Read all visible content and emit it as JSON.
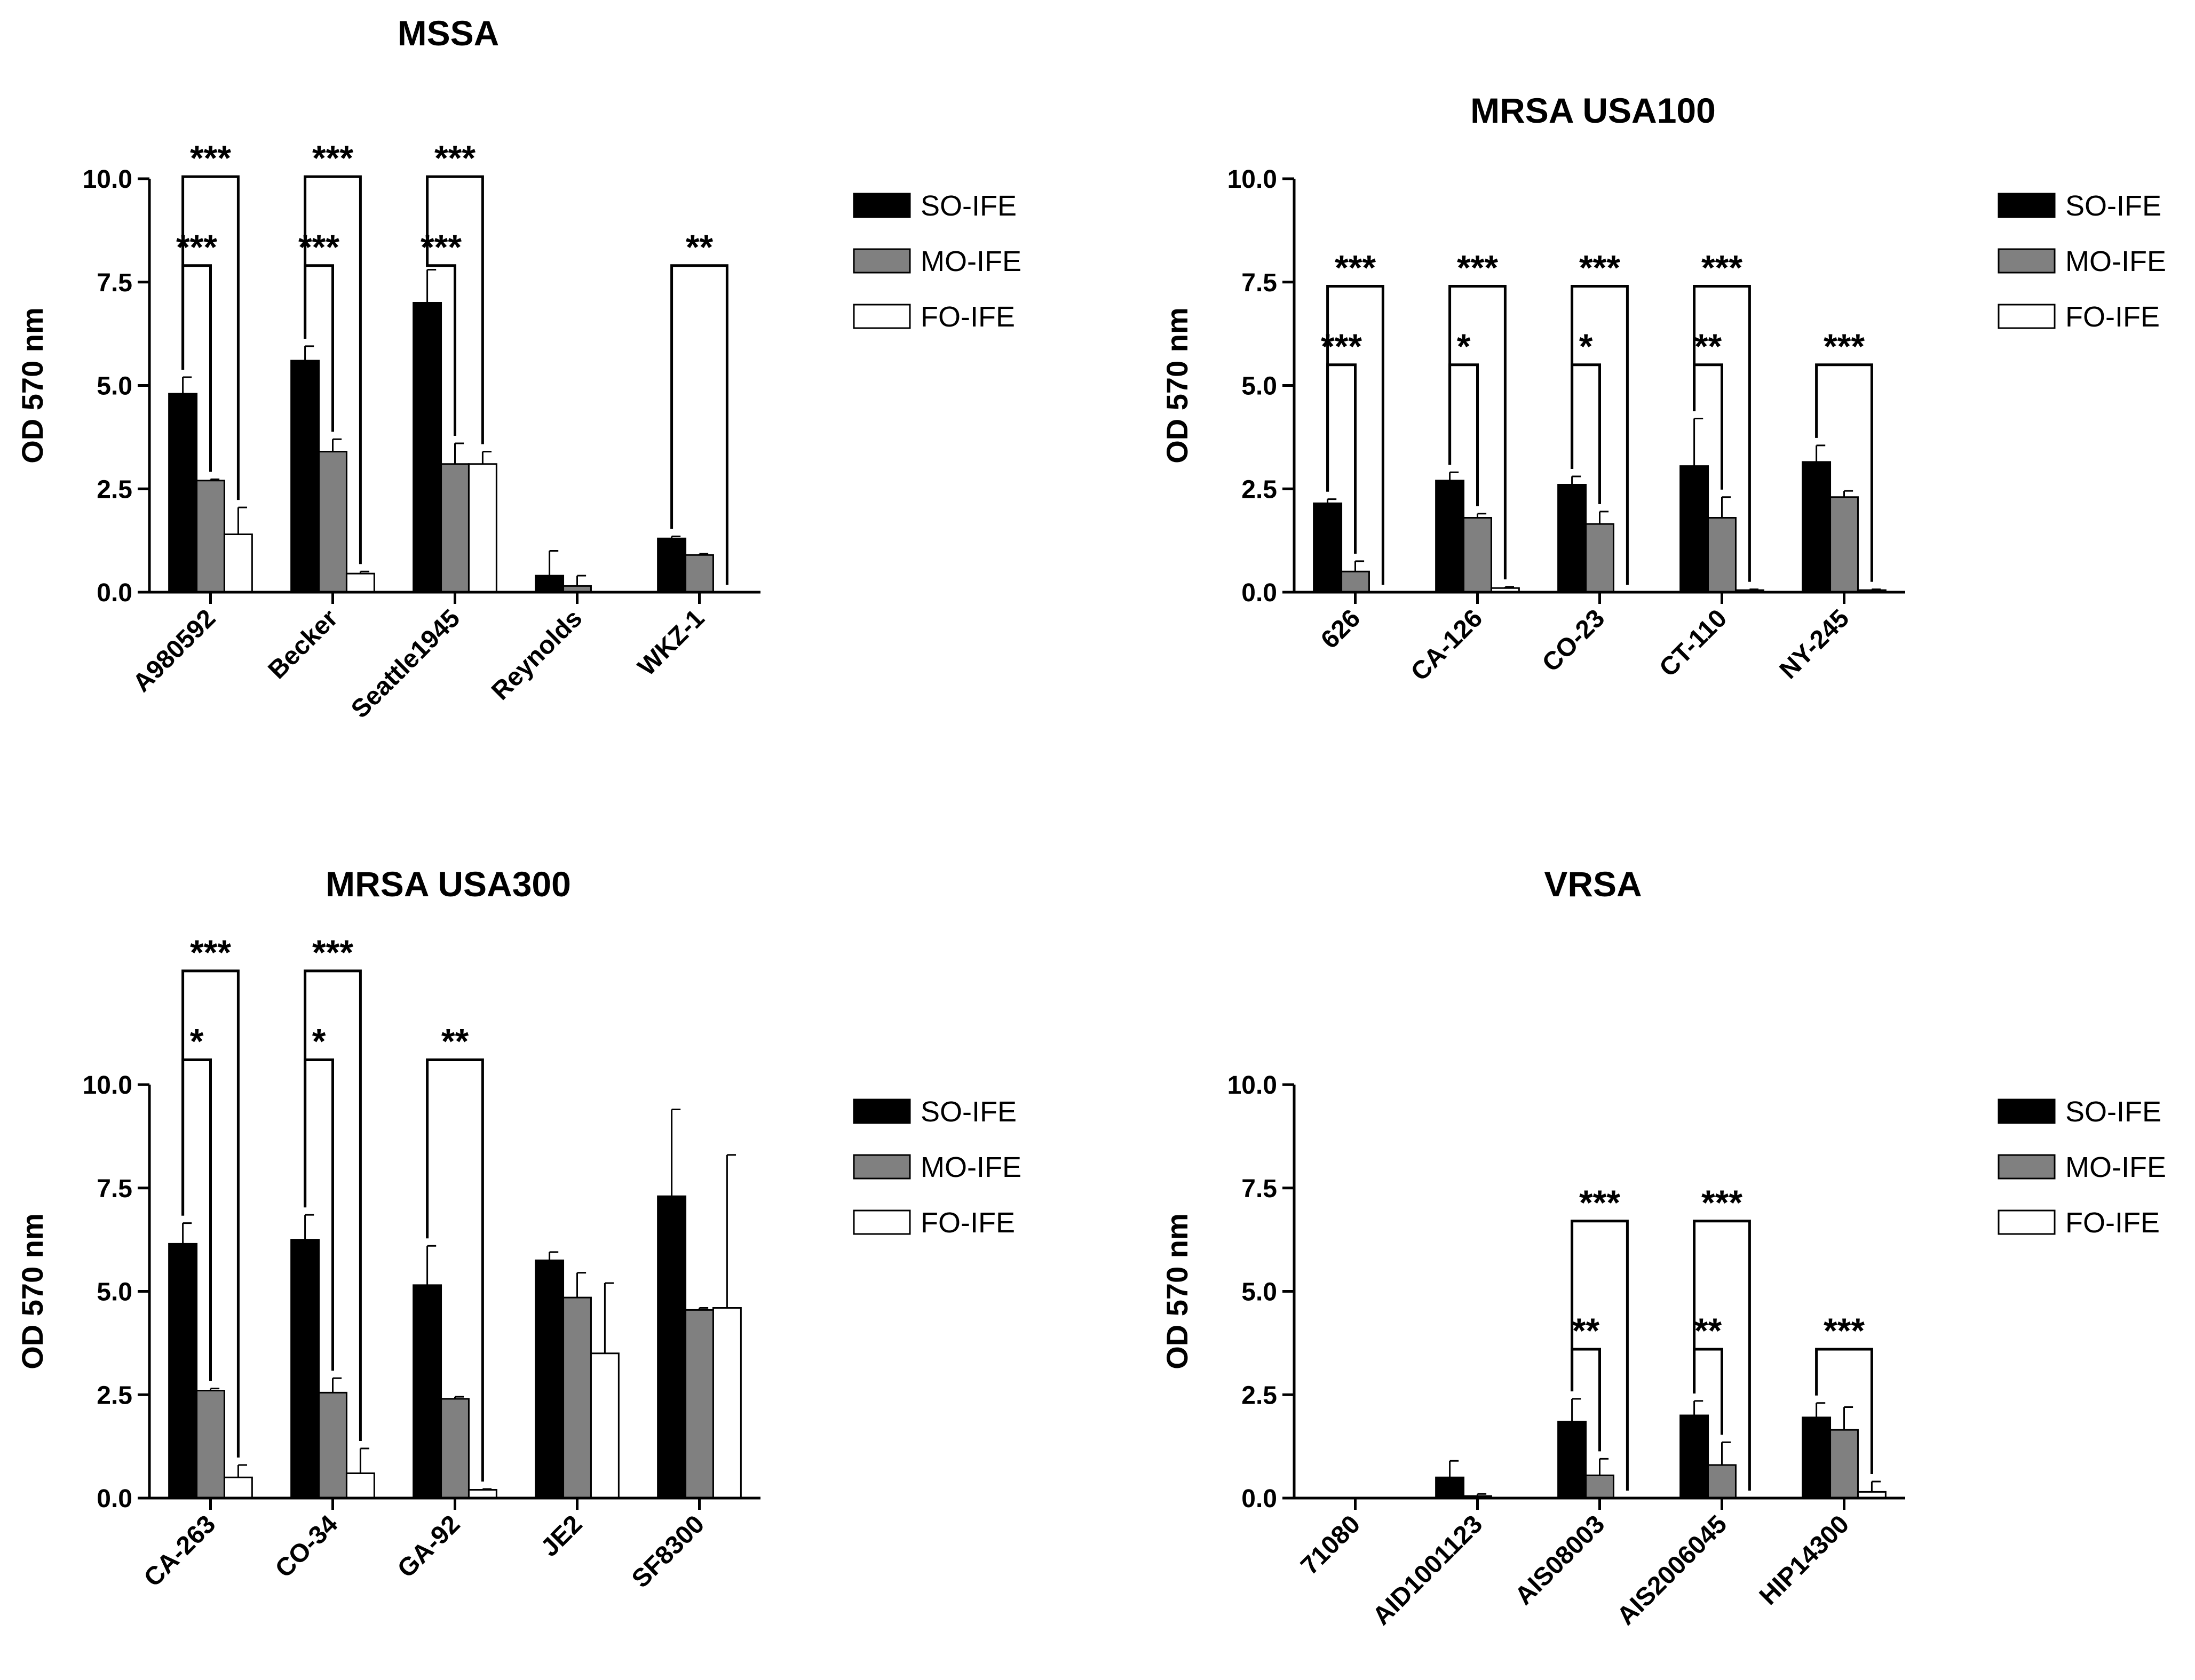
{
  "figure": {
    "series_names": [
      "SO-IFE",
      "MO-IFE",
      "FO-IFE"
    ],
    "series_colors": [
      "#000000",
      "#808080",
      "#ffffff"
    ]
  },
  "chart_data": [
    {
      "type": "bar",
      "title": "MSSA",
      "ylabel": "OD 570 nm",
      "xlabel": "",
      "ylim": [
        0,
        10
      ],
      "yticks": [
        "0.0",
        "2.5",
        "5.0",
        "7.5",
        "10.0"
      ],
      "legend": "right",
      "categories": [
        "A980592",
        "Becker",
        "Seattle1945",
        "Reynolds",
        "WKZ-1"
      ],
      "series": [
        {
          "name": "SO-IFE",
          "values": [
            4.8,
            5.6,
            7.0,
            0.4,
            1.3
          ],
          "errors": [
            0.4,
            0.35,
            0.8,
            0.6,
            0.05
          ]
        },
        {
          "name": "MO-IFE",
          "values": [
            2.7,
            3.4,
            3.1,
            0.15,
            0.9
          ],
          "errors": [
            0.03,
            0.3,
            0.5,
            0.25,
            0.03
          ]
        },
        {
          "name": "FO-IFE",
          "values": [
            1.4,
            0.45,
            3.1,
            0.0,
            0.0
          ],
          "errors": [
            0.65,
            0.05,
            0.3,
            0.0,
            0.0
          ]
        }
      ],
      "significance": [
        {
          "category": 0,
          "from": 0,
          "to": 2,
          "label": "***",
          "level": 10.05
        },
        {
          "category": 0,
          "from": 0,
          "to": 1,
          "label": "***",
          "level": 7.9
        },
        {
          "category": 1,
          "from": 0,
          "to": 2,
          "label": "***",
          "level": 10.05
        },
        {
          "category": 1,
          "from": 0,
          "to": 1,
          "label": "***",
          "level": 7.9
        },
        {
          "category": 2,
          "from": 0,
          "to": 2,
          "label": "***",
          "level": 10.05
        },
        {
          "category": 2,
          "from": 0,
          "to": 1,
          "label": "***",
          "level": 7.9
        },
        {
          "category": 4,
          "from": 0,
          "to": 2,
          "label": "**",
          "level": 7.9
        }
      ]
    },
    {
      "type": "bar",
      "title": "MRSA USA100",
      "ylabel": "OD 570 nm",
      "xlabel": "",
      "ylim": [
        0,
        10
      ],
      "yticks": [
        "0.0",
        "2.5",
        "5.0",
        "7.5",
        "10.0"
      ],
      "legend": "right",
      "categories": [
        "626",
        "CA-126",
        "CO-23",
        "CT-110",
        "NY-245"
      ],
      "series": [
        {
          "name": "SO-IFE",
          "values": [
            2.15,
            2.7,
            2.6,
            3.05,
            3.15
          ],
          "errors": [
            0.1,
            0.2,
            0.2,
            1.15,
            0.4
          ]
        },
        {
          "name": "MO-IFE",
          "values": [
            0.5,
            1.8,
            1.65,
            1.8,
            2.3
          ],
          "errors": [
            0.25,
            0.1,
            0.3,
            0.5,
            0.15
          ]
        },
        {
          "name": "FO-IFE",
          "values": [
            0.0,
            0.1,
            0.0,
            0.05,
            0.05
          ],
          "errors": [
            0.0,
            0.03,
            0.0,
            0.02,
            0.02
          ]
        }
      ],
      "significance": [
        {
          "category": 0,
          "from": 0,
          "to": 2,
          "label": "***",
          "level": 7.4
        },
        {
          "category": 0,
          "from": 0,
          "to": 1,
          "label": "***",
          "level": 5.5
        },
        {
          "category": 1,
          "from": 0,
          "to": 2,
          "label": "***",
          "level": 7.4
        },
        {
          "category": 1,
          "from": 0,
          "to": 1,
          "label": "*",
          "level": 5.5
        },
        {
          "category": 2,
          "from": 0,
          "to": 2,
          "label": "***",
          "level": 7.4
        },
        {
          "category": 2,
          "from": 0,
          "to": 1,
          "label": "*",
          "level": 5.5
        },
        {
          "category": 3,
          "from": 0,
          "to": 2,
          "label": "***",
          "level": 7.4
        },
        {
          "category": 3,
          "from": 0,
          "to": 1,
          "label": "**",
          "level": 5.5
        },
        {
          "category": 4,
          "from": 0,
          "to": 2,
          "label": "***",
          "level": 5.5
        }
      ]
    },
    {
      "type": "bar",
      "title": "MRSA USA300",
      "ylabel": "OD 570 nm",
      "xlabel": "",
      "ylim": [
        0,
        10
      ],
      "yticks": [
        "0.0",
        "2.5",
        "5.0",
        "7.5",
        "10.0"
      ],
      "legend": "right",
      "categories": [
        "CA-263",
        "CO-34",
        "GA-92",
        "JE2",
        "SF8300"
      ],
      "series": [
        {
          "name": "SO-IFE",
          "values": [
            6.15,
            6.25,
            5.15,
            5.75,
            7.3
          ],
          "errors": [
            0.5,
            0.6,
            0.95,
            0.2,
            2.1
          ]
        },
        {
          "name": "MO-IFE",
          "values": [
            2.6,
            2.55,
            2.4,
            4.85,
            4.55
          ],
          "errors": [
            0.05,
            0.35,
            0.05,
            0.6,
            0.05
          ]
        },
        {
          "name": "FO-IFE",
          "values": [
            0.5,
            0.6,
            0.2,
            3.5,
            4.6
          ],
          "errors": [
            0.3,
            0.6,
            0.02,
            1.7,
            3.7
          ]
        }
      ],
      "significance": [
        {
          "category": 0,
          "from": 0,
          "to": 2,
          "label": "***",
          "level": 12.75
        },
        {
          "category": 0,
          "from": 0,
          "to": 1,
          "label": "*",
          "level": 10.6
        },
        {
          "category": 1,
          "from": 0,
          "to": 2,
          "label": "***",
          "level": 12.75
        },
        {
          "category": 1,
          "from": 0,
          "to": 1,
          "label": "*",
          "level": 10.6
        },
        {
          "category": 2,
          "from": 0,
          "to": 2,
          "label": "**",
          "level": 10.6
        }
      ]
    },
    {
      "type": "bar",
      "title": "VRSA",
      "ylabel": "OD 570 nm",
      "xlabel": "",
      "ylim": [
        0,
        10
      ],
      "yticks": [
        "0.0",
        "2.5",
        "5.0",
        "7.5",
        "10.0"
      ],
      "legend": "right",
      "categories": [
        "71080",
        "AID1001123",
        "AIS08003",
        "AIS2006045",
        "HIP14300"
      ],
      "series": [
        {
          "name": "SO-IFE",
          "values": [
            0.0,
            0.5,
            1.85,
            2.0,
            1.95
          ],
          "errors": [
            0.0,
            0.4,
            0.55,
            0.35,
            0.35
          ]
        },
        {
          "name": "MO-IFE",
          "values": [
            0.0,
            0.05,
            0.55,
            0.8,
            1.65
          ],
          "errors": [
            0.0,
            0.05,
            0.4,
            0.55,
            0.55
          ]
        },
        {
          "name": "FO-IFE",
          "values": [
            0.0,
            0.0,
            0.0,
            0.0,
            0.15
          ],
          "errors": [
            0.0,
            0.0,
            0.0,
            0.0,
            0.25
          ]
        }
      ],
      "significance": [
        {
          "category": 2,
          "from": 0,
          "to": 2,
          "label": "***",
          "level": 6.7
        },
        {
          "category": 2,
          "from": 0,
          "to": 1,
          "label": "**",
          "level": 3.6
        },
        {
          "category": 3,
          "from": 0,
          "to": 2,
          "label": "***",
          "level": 6.7
        },
        {
          "category": 3,
          "from": 0,
          "to": 1,
          "label": "**",
          "level": 3.6
        },
        {
          "category": 4,
          "from": 0,
          "to": 2,
          "label": "***",
          "level": 3.6
        }
      ]
    }
  ]
}
